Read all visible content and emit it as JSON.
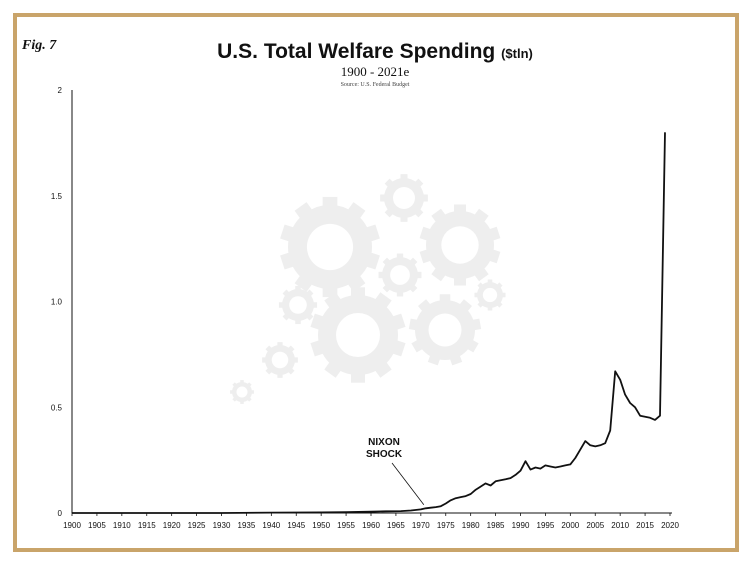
{
  "figure": {
    "label": "Fig. 7"
  },
  "chart_data": {
    "type": "line",
    "title": "U.S. Total Welfare Spending",
    "title_unit": "($tln)",
    "subtitle": "1900 - 2021e",
    "source": "Source: U.S. Federal Budget",
    "xlabel": "",
    "ylabel": "",
    "xlim": [
      1900,
      2020
    ],
    "ylim": [
      0,
      2
    ],
    "x_ticks": [
      1900,
      1905,
      1910,
      1915,
      1920,
      1925,
      1930,
      1935,
      1940,
      1945,
      1950,
      1955,
      1960,
      1965,
      1970,
      1975,
      1980,
      1985,
      1990,
      1995,
      2000,
      2005,
      2010,
      2015,
      2020
    ],
    "y_ticks": [
      {
        "value": 0,
        "label": "0"
      },
      {
        "value": 0.5,
        "label": "0.5"
      },
      {
        "value": 1.0,
        "label": "1.0"
      },
      {
        "value": 1.5,
        "label": "1.5"
      },
      {
        "value": 2,
        "label": "2"
      }
    ],
    "grid": false,
    "legend": "none",
    "series": [
      {
        "color": "#111111",
        "points": [
          [
            1900,
            0.0
          ],
          [
            1910,
            0.0
          ],
          [
            1920,
            0.0
          ],
          [
            1930,
            0.0
          ],
          [
            1940,
            0.002
          ],
          [
            1950,
            0.003
          ],
          [
            1955,
            0.004
          ],
          [
            1960,
            0.006
          ],
          [
            1963,
            0.008
          ],
          [
            1966,
            0.009
          ],
          [
            1968,
            0.012
          ],
          [
            1970,
            0.017
          ],
          [
            1971,
            0.022
          ],
          [
            1972,
            0.025
          ],
          [
            1973,
            0.028
          ],
          [
            1974,
            0.032
          ],
          [
            1975,
            0.045
          ],
          [
            1976,
            0.06
          ],
          [
            1977,
            0.07
          ],
          [
            1978,
            0.075
          ],
          [
            1979,
            0.08
          ],
          [
            1980,
            0.09
          ],
          [
            1981,
            0.11
          ],
          [
            1982,
            0.125
          ],
          [
            1983,
            0.14
          ],
          [
            1984,
            0.13
          ],
          [
            1985,
            0.15
          ],
          [
            1986,
            0.155
          ],
          [
            1987,
            0.16
          ],
          [
            1988,
            0.165
          ],
          [
            1989,
            0.18
          ],
          [
            1990,
            0.2
          ],
          [
            1991,
            0.245
          ],
          [
            1992,
            0.205
          ],
          [
            1993,
            0.215
          ],
          [
            1994,
            0.21
          ],
          [
            1995,
            0.225
          ],
          [
            1996,
            0.22
          ],
          [
            1997,
            0.215
          ],
          [
            1998,
            0.22
          ],
          [
            1999,
            0.225
          ],
          [
            2000,
            0.23
          ],
          [
            2001,
            0.26
          ],
          [
            2002,
            0.3
          ],
          [
            2003,
            0.34
          ],
          [
            2004,
            0.32
          ],
          [
            2005,
            0.315
          ],
          [
            2006,
            0.32
          ],
          [
            2007,
            0.33
          ],
          [
            2008,
            0.39
          ],
          [
            2009,
            0.67
          ],
          [
            2010,
            0.63
          ],
          [
            2011,
            0.56
          ],
          [
            2012,
            0.52
          ],
          [
            2013,
            0.5
          ],
          [
            2014,
            0.46
          ],
          [
            2015,
            0.455
          ],
          [
            2016,
            0.45
          ],
          [
            2017,
            0.44
          ],
          [
            2018,
            0.46
          ],
          [
            2019,
            1.8
          ]
        ]
      }
    ],
    "annotations": [
      {
        "text_lines": [
          "NIXON",
          "SHOCK"
        ],
        "x": 1971,
        "y": 0.02
      }
    ]
  },
  "colors": {
    "frame": "#c9a46a",
    "line": "#111111",
    "watermark": "#eeeeee"
  },
  "watermark": {
    "icon": "gears-icon"
  }
}
